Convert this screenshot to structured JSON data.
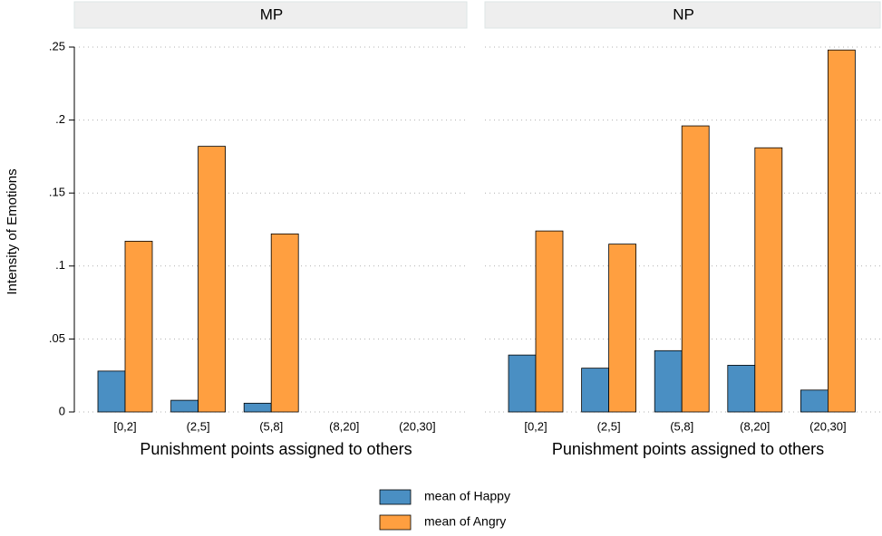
{
  "chart_data": {
    "type": "bar",
    "y_label": "Intensity of Emotions",
    "ylim": [
      0,
      0.25
    ],
    "yticks": [
      0,
      {
        "value": 0.05,
        "label": ".05"
      },
      {
        "value": 0.1,
        "label": ".1"
      },
      {
        "value": 0.15,
        "label": ".15"
      },
      {
        "value": 0.2,
        "label": ".2"
      },
      {
        "value": 0.25,
        "label": ".25"
      }
    ],
    "grid": true,
    "legend": "bottom",
    "series": [
      {
        "name": "mean of Happy",
        "color": "#4a8fc3"
      },
      {
        "name": "mean of Angry",
        "color": "#ff9f40"
      }
    ],
    "panels": [
      {
        "title": "MP",
        "x_label": "Punishment points assigned to others",
        "categories": [
          "[0,2]",
          "(2,5]",
          "(5,8]",
          "(8,20]",
          "(20,30]"
        ],
        "values": [
          [
            0.028,
            0.008,
            0.006,
            null,
            null
          ],
          [
            0.117,
            0.182,
            0.122,
            null,
            null
          ]
        ]
      },
      {
        "title": "NP",
        "x_label": "Punishment points assigned to others",
        "categories": [
          "[0,2]",
          "(2,5]",
          "(5,8]",
          "(8,20]",
          "(20,30]"
        ],
        "values": [
          [
            0.039,
            0.03,
            0.042,
            0.032,
            0.015
          ],
          [
            0.124,
            0.115,
            0.196,
            0.181,
            0.248
          ]
        ]
      }
    ]
  }
}
